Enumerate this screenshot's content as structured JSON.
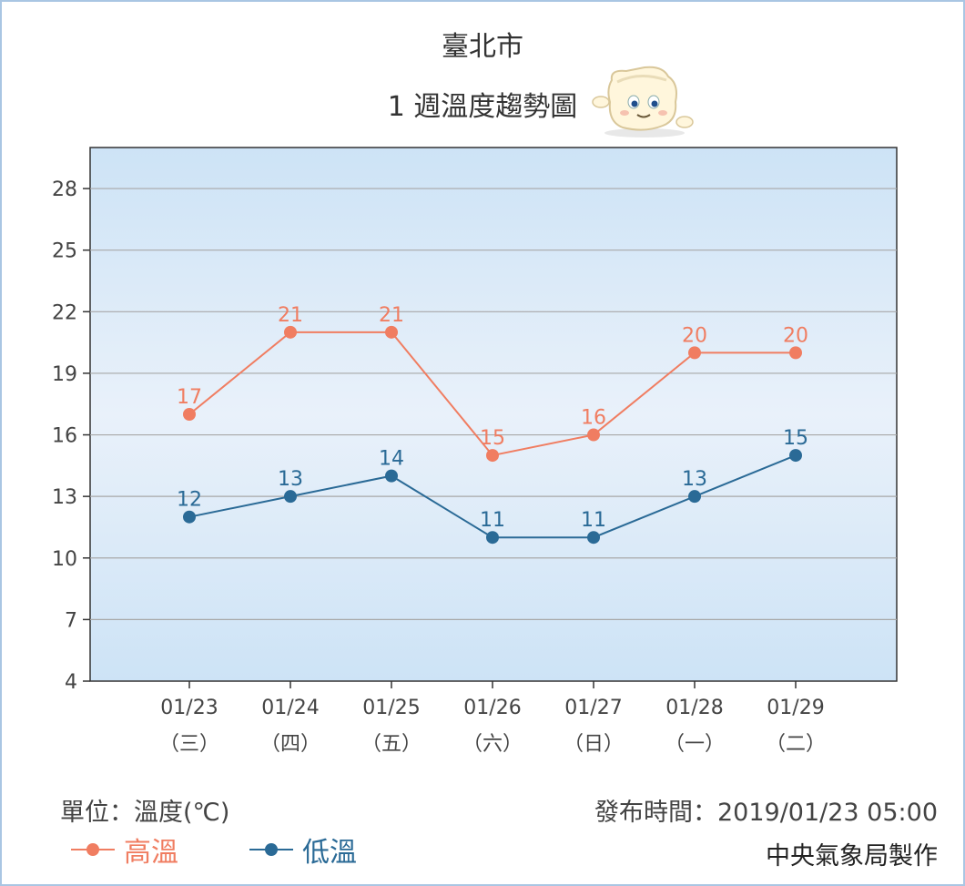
{
  "header": {
    "city": "臺北市",
    "subtitle": "1 週溫度趨勢圖"
  },
  "chart_data": {
    "type": "line",
    "categories": [
      "01/23",
      "01/24",
      "01/25",
      "01/26",
      "01/27",
      "01/28",
      "01/29"
    ],
    "weekdays": [
      "（三）",
      "（四）",
      "（五）",
      "（六）",
      "（日）",
      "（一）",
      "（二）"
    ],
    "series": [
      {
        "name": "高溫",
        "values": [
          17,
          21,
          21,
          15,
          16,
          20,
          20
        ],
        "color": "#f07d61"
      },
      {
        "name": "低溫",
        "values": [
          12,
          13,
          14,
          11,
          11,
          13,
          15
        ],
        "color": "#2a6a96"
      }
    ],
    "yticks": [
      4,
      7,
      10,
      13,
      16,
      19,
      22,
      25,
      28
    ],
    "ylim": [
      4,
      30
    ],
    "grid": true,
    "legend_position": "bottom-left"
  },
  "footer": {
    "unit": "單位：溫度(℃)",
    "issued": "發布時間：2019/01/23 05:00",
    "maker": "中央氣象局製作"
  }
}
